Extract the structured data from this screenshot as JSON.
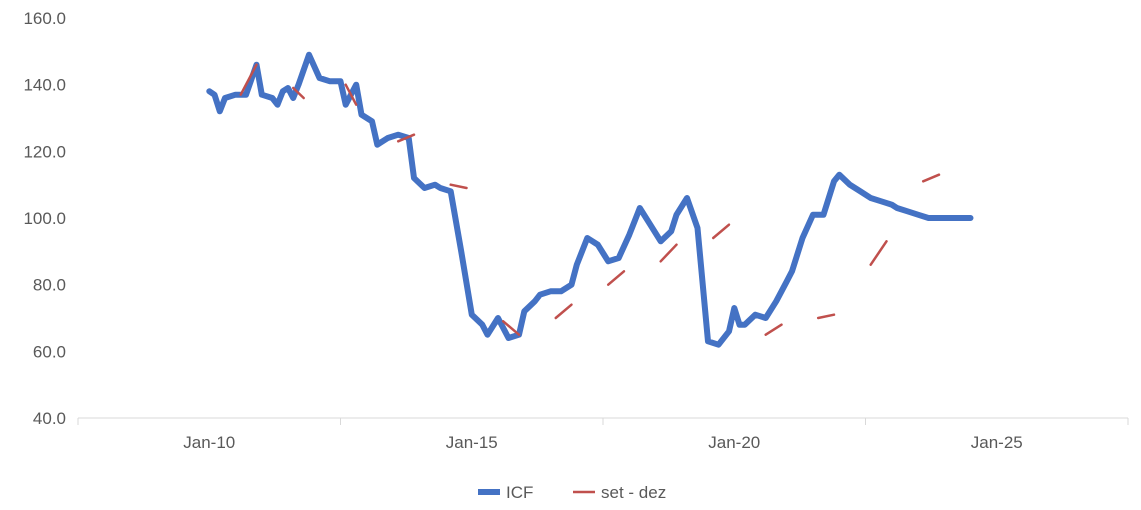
{
  "chart_data": {
    "type": "line",
    "title": "",
    "xlabel": "",
    "ylabel": "",
    "ylim": [
      40,
      160
    ],
    "yticks": [
      "40.0",
      "60.0",
      "80.0",
      "100.0",
      "120.0",
      "140.0",
      "160.0"
    ],
    "xticks": [
      {
        "label": "Jan-10",
        "x": 2010.0
      },
      {
        "label": "Jan-15",
        "x": 2015.0
      },
      {
        "label": "Jan-20",
        "x": 2020.0
      },
      {
        "label": "Jan-25",
        "x": 2025.0
      }
    ],
    "xlim": [
      2007.5,
      2027.5
    ],
    "x_category_bounds": [
      2007.5,
      2012.5,
      2017.5,
      2022.5,
      2027.5
    ],
    "grid": false,
    "legend_position": "bottom",
    "colors": {
      "ICF": "#4472C4",
      "set - dez": "#C0504D"
    },
    "series": [
      {
        "name": "ICF",
        "x": [
          2010.0,
          2010.1,
          2010.2,
          2010.3,
          2010.5,
          2010.7,
          2010.9,
          2011.0,
          2011.2,
          2011.3,
          2011.4,
          2011.5,
          2011.6,
          2011.7,
          2011.9,
          2012.1,
          2012.3,
          2012.5,
          2012.6,
          2012.8,
          2012.9,
          2013.1,
          2013.2,
          2013.4,
          2013.6,
          2013.8,
          2013.9,
          2014.1,
          2014.3,
          2014.4,
          2014.6,
          2014.8,
          2015.0,
          2015.2,
          2015.3,
          2015.5,
          2015.7,
          2015.9,
          2016.0,
          2016.2,
          2016.3,
          2016.5,
          2016.7,
          2016.9,
          2017.0,
          2017.2,
          2017.4,
          2017.6,
          2017.8,
          2018.0,
          2018.2,
          2018.4,
          2018.6,
          2018.8,
          2018.9,
          2019.1,
          2019.3,
          2019.5,
          2019.7,
          2019.9,
          2020.0,
          2020.1,
          2020.2,
          2020.4,
          2020.6,
          2020.8,
          2021.0,
          2021.1,
          2021.3,
          2021.5,
          2021.7,
          2021.9,
          2022.0,
          2022.2,
          2022.4,
          2022.6,
          2022.8,
          2023.0,
          2023.1,
          2023.3,
          2023.5,
          2023.7,
          2023.9,
          2024.1,
          2024.3,
          2024.5
        ],
        "values": [
          138,
          137,
          132,
          136,
          137,
          137,
          146,
          137,
          136,
          134,
          138,
          139,
          136,
          140,
          149,
          142,
          141,
          141,
          134,
          140,
          131,
          129,
          122,
          124,
          125,
          124,
          112,
          109,
          110,
          109,
          108,
          90,
          71,
          68,
          65,
          70,
          64,
          65,
          72,
          75,
          77,
          78,
          78,
          80,
          86,
          94,
          92,
          87,
          88,
          95,
          103,
          98,
          93,
          96,
          101,
          106,
          97,
          63,
          62,
          66,
          73,
          68,
          68,
          71,
          70,
          75,
          81,
          84,
          94,
          101,
          101,
          111,
          113,
          110,
          108,
          106,
          105,
          104,
          103,
          102,
          101,
          100,
          100,
          100,
          100,
          100
        ]
      },
      {
        "name": "set - dez",
        "segments": [
          {
            "x": [
              2010.6,
              2010.9
            ],
            "values": [
              137,
              146
            ]
          },
          {
            "x": [
              2011.6,
              2011.8
            ],
            "values": [
              139,
              136
            ]
          },
          {
            "x": [
              2012.6,
              2012.8
            ],
            "values": [
              140,
              134
            ]
          },
          {
            "x": [
              2013.6,
              2013.9
            ],
            "values": [
              123,
              125
            ]
          },
          {
            "x": [
              2014.6,
              2014.9
            ],
            "values": [
              110,
              109
            ]
          },
          {
            "x": [
              2015.6,
              2015.9
            ],
            "values": [
              69,
              65
            ]
          },
          {
            "x": [
              2016.6,
              2016.9
            ],
            "values": [
              70,
              74
            ]
          },
          {
            "x": [
              2017.6,
              2017.9
            ],
            "values": [
              80,
              84
            ]
          },
          {
            "x": [
              2018.6,
              2018.9
            ],
            "values": [
              87,
              92
            ]
          },
          {
            "x": [
              2019.6,
              2019.9
            ],
            "values": [
              94,
              98
            ]
          },
          {
            "x": [
              2020.6,
              2020.9
            ],
            "values": [
              65,
              68
            ]
          },
          {
            "x": [
              2021.6,
              2021.9
            ],
            "values": [
              70,
              71
            ]
          },
          {
            "x": [
              2022.6,
              2022.9
            ],
            "values": [
              86,
              93
            ]
          },
          {
            "x": [
              2023.6,
              2023.9
            ],
            "values": [
              111,
              113
            ]
          }
        ]
      }
    ]
  }
}
